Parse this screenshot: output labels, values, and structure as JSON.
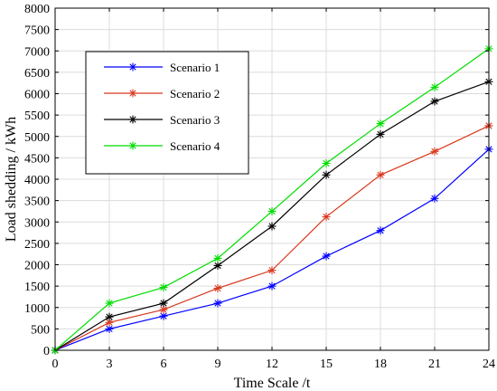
{
  "chart_data": {
    "type": "line",
    "xlabel": "Time Scale /t",
    "ylabel": "Load shedding / kWh",
    "xlim": [
      0,
      24
    ],
    "ylim": [
      0,
      8000
    ],
    "x": [
      0,
      3,
      6,
      9,
      12,
      15,
      18,
      21,
      24
    ],
    "x_ticks": [
      "0",
      "3",
      "6",
      "9",
      "12",
      "15",
      "18",
      "21",
      "24"
    ],
    "y_ticks": [
      "0",
      "500",
      "1000",
      "1500",
      "2000",
      "2500",
      "3000",
      "3500",
      "4000",
      "4500",
      "5000",
      "5500",
      "6000",
      "6500",
      "7000",
      "7500",
      "8000"
    ],
    "grid": true,
    "legend_position": "upper-left",
    "marker": "asterisk",
    "series": [
      {
        "name": "Scenario 1",
        "color": "#0000ff",
        "values": [
          0,
          500,
          800,
          1100,
          1500,
          2200,
          2800,
          3550,
          4700
        ]
      },
      {
        "name": "Scenario 2",
        "color": "#d9381e",
        "values": [
          0,
          650,
          950,
          1450,
          1870,
          3120,
          4100,
          4650,
          5250
        ]
      },
      {
        "name": "Scenario 3",
        "color": "#000000",
        "values": [
          0,
          780,
          1100,
          1980,
          2900,
          4100,
          5050,
          5820,
          6280
        ]
      },
      {
        "name": "Scenario 4",
        "color": "#00dd00",
        "values": [
          0,
          1100,
          1470,
          2150,
          3250,
          4370,
          5300,
          6150,
          7050
        ]
      }
    ]
  }
}
